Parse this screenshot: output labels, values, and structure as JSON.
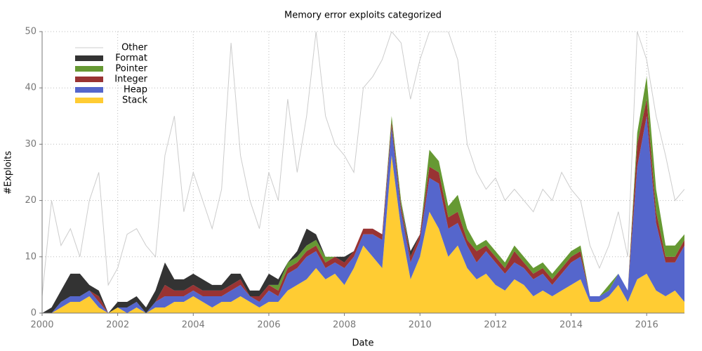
{
  "chart_data": {
    "type": "stacked-area",
    "title": "Memory error exploits categorized",
    "x_label": "Date",
    "y_label": "#Exploits",
    "x": [
      2000,
      2000.25,
      2000.5,
      2000.75,
      2001,
      2001.25,
      2001.5,
      2001.75,
      2002,
      2002.25,
      2002.5,
      2002.75,
      2003,
      2003.25,
      2003.5,
      2003.75,
      2004,
      2004.25,
      2004.5,
      2004.75,
      2005,
      2005.25,
      2005.5,
      2005.75,
      2006,
      2006.25,
      2006.5,
      2006.75,
      2007,
      2007.25,
      2007.5,
      2007.75,
      2008,
      2008.25,
      2008.5,
      2008.75,
      2009,
      2009.25,
      2009.5,
      2009.75,
      2010,
      2010.25,
      2010.5,
      2010.75,
      2011,
      2011.25,
      2011.5,
      2011.75,
      2012,
      2012.25,
      2012.5,
      2012.75,
      2013,
      2013.25,
      2013.5,
      2013.75,
      2014,
      2014.25,
      2014.5,
      2014.75,
      2015,
      2015.25,
      2015.5,
      2015.75,
      2016,
      2016.25,
      2016.5,
      2016.75,
      2017
    ],
    "series": [
      {
        "name": "Stack",
        "color": "#ffcc33",
        "values": [
          0,
          0,
          1,
          2,
          2,
          3,
          1,
          0,
          1,
          0,
          1,
          0,
          1,
          1,
          2,
          2,
          3,
          2,
          1,
          2,
          2,
          3,
          2,
          1,
          2,
          2,
          4,
          5,
          6,
          8,
          6,
          7,
          5,
          8,
          12,
          10,
          8,
          28,
          15,
          6,
          10,
          18,
          15,
          10,
          12,
          8,
          6,
          7,
          5,
          4,
          6,
          5,
          3,
          4,
          3,
          4,
          5,
          6,
          2,
          2,
          3,
          5,
          2,
          6,
          7,
          4,
          3,
          4,
          2
        ]
      },
      {
        "name": "Heap",
        "color": "#5566cc",
        "values": [
          0,
          0,
          1,
          1,
          1,
          1,
          1,
          0,
          0,
          1,
          1,
          0,
          1,
          2,
          1,
          1,
          1,
          1,
          2,
          1,
          2,
          2,
          1,
          1,
          2,
          1,
          3,
          3,
          4,
          3,
          2,
          2,
          3,
          2,
          2,
          4,
          5,
          5,
          3,
          3,
          3,
          6,
          8,
          5,
          4,
          4,
          3,
          4,
          4,
          3,
          3,
          3,
          3,
          3,
          2,
          3,
          4,
          4,
          1,
          1,
          1,
          2,
          2,
          20,
          28,
          12,
          6,
          5,
          10
        ]
      },
      {
        "name": "Integer",
        "color": "#993333",
        "values": [
          0,
          0,
          0,
          0,
          0,
          0,
          1,
          0,
          0,
          0,
          0,
          0,
          0,
          2,
          1,
          1,
          1,
          1,
          1,
          1,
          1,
          1,
          0,
          1,
          1,
          1,
          1,
          1,
          1,
          1,
          1,
          1,
          1,
          1,
          1,
          1,
          1,
          1,
          1,
          1,
          1,
          2,
          2,
          2,
          2,
          1,
          2,
          1,
          1,
          1,
          2,
          1,
          1,
          1,
          1,
          1,
          1,
          1,
          0,
          0,
          0,
          0,
          0,
          4,
          3,
          2,
          1,
          1,
          1
        ]
      },
      {
        "name": "Pointer",
        "color": "#669933",
        "values": [
          0,
          0,
          0,
          0,
          0,
          0,
          0,
          0,
          0,
          0,
          0,
          0,
          0,
          0,
          0,
          0,
          0,
          0,
          0,
          0,
          0,
          0,
          0,
          0,
          0,
          1,
          1,
          1,
          1,
          1,
          1,
          0,
          0,
          0,
          0,
          0,
          0,
          1,
          1,
          0,
          0,
          3,
          2,
          2,
          3,
          2,
          1,
          1,
          1,
          1,
          1,
          1,
          1,
          1,
          1,
          1,
          1,
          1,
          0,
          0,
          1,
          0,
          0,
          2,
          4,
          4,
          2,
          2,
          1
        ]
      },
      {
        "name": "Format",
        "color": "#333333",
        "values": [
          0,
          1,
          2,
          4,
          4,
          1,
          1,
          0,
          1,
          1,
          1,
          1,
          2,
          4,
          2,
          2,
          2,
          2,
          1,
          1,
          2,
          1,
          1,
          1,
          2,
          1,
          0,
          1,
          3,
          1,
          0,
          0,
          1,
          0,
          0,
          0,
          0,
          0,
          0,
          1,
          0,
          0,
          0,
          0,
          0,
          0,
          0,
          0,
          0,
          0,
          0,
          0,
          0,
          0,
          0,
          0,
          0,
          0,
          0,
          0,
          0,
          0,
          0,
          0,
          0,
          0,
          0,
          0,
          0
        ]
      },
      {
        "name": "Other",
        "type": "line",
        "color": "#cccccc",
        "values": [
          3,
          20,
          12,
          15,
          10,
          20,
          25,
          5,
          8,
          14,
          15,
          12,
          10,
          28,
          35,
          18,
          25,
          20,
          15,
          22,
          48,
          28,
          20,
          15,
          25,
          20,
          38,
          25,
          35,
          50,
          35,
          30,
          28,
          25,
          40,
          42,
          45,
          50,
          48,
          38,
          45,
          50,
          50,
          50,
          45,
          30,
          25,
          22,
          24,
          20,
          22,
          20,
          18,
          22,
          20,
          25,
          22,
          20,
          12,
          8,
          12,
          18,
          10,
          50,
          45,
          35,
          28,
          20,
          22
        ]
      }
    ],
    "xlim": [
      2000,
      2017
    ],
    "xticks": [
      2000,
      2002,
      2004,
      2006,
      2008,
      2010,
      2012,
      2014,
      2016
    ],
    "ylim": [
      0,
      50
    ],
    "yticks": [
      0,
      10,
      20,
      30,
      40,
      50
    ],
    "grid": true,
    "legend": "upper left"
  }
}
